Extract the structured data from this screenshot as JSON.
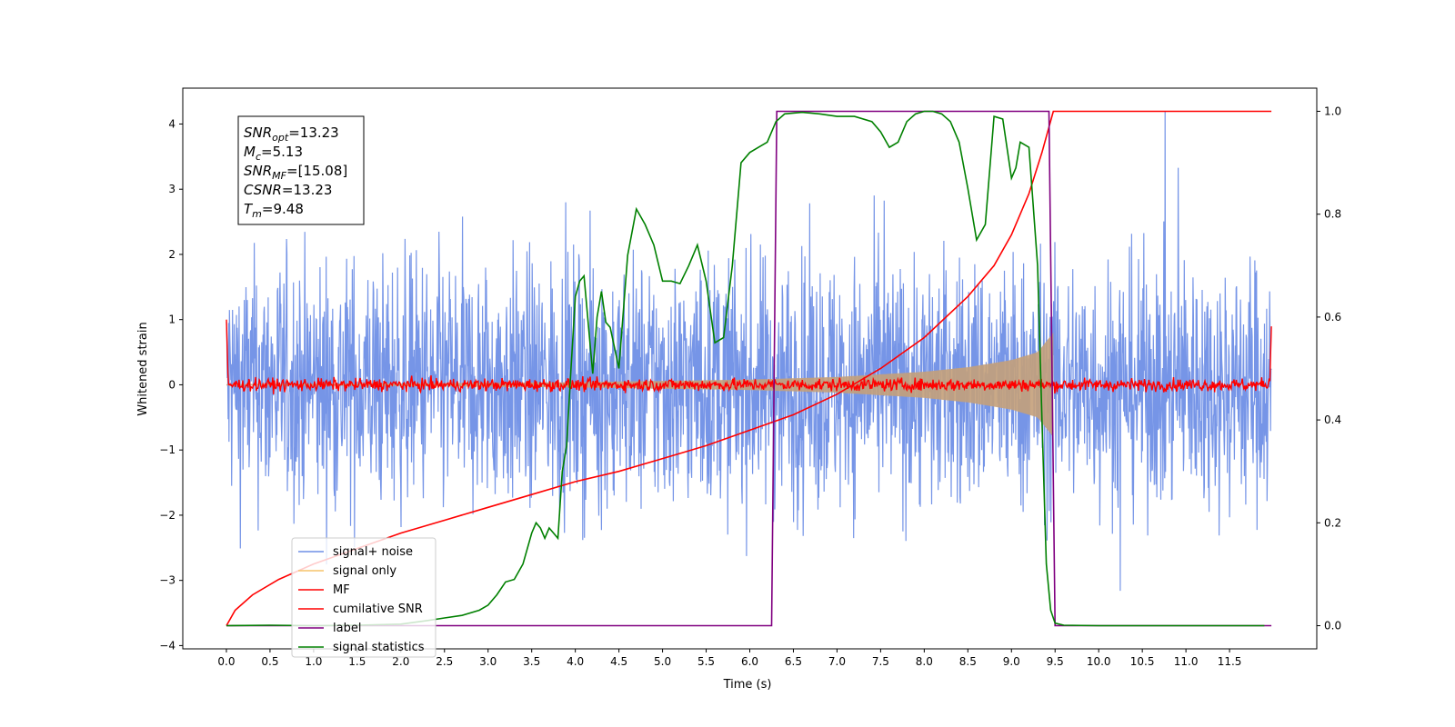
{
  "chart_data": {
    "type": "line",
    "title": "",
    "xlabel": "Time (s)",
    "ylabel": "Whitened strain",
    "xlim": [
      -0.5,
      12.5
    ],
    "ylim": [
      -4.05,
      4.55
    ],
    "y2lim": [
      -0.045,
      1.045
    ],
    "xticks": [
      "0.0",
      "0.5",
      "1.0",
      "1.5",
      "2.0",
      "2.5",
      "3.0",
      "3.5",
      "4.0",
      "4.5",
      "5.0",
      "5.5",
      "6.0",
      "6.5",
      "7.0",
      "7.5",
      "8.0",
      "8.5",
      "9.0",
      "9.5",
      "10.0",
      "10.5",
      "11.0",
      "11.5"
    ],
    "xtick_values": [
      0,
      0.5,
      1,
      1.5,
      2,
      2.5,
      3,
      3.5,
      4,
      4.5,
      5,
      5.5,
      6,
      6.5,
      7,
      7.5,
      8,
      8.5,
      9,
      9.5,
      10,
      10.5,
      11,
      11.5
    ],
    "yticks": [
      "−4",
      "−3",
      "−2",
      "−1",
      "0",
      "1",
      "2",
      "3",
      "4"
    ],
    "ytick_values": [
      -4,
      -3,
      -2,
      -1,
      0,
      1,
      2,
      3,
      4
    ],
    "y2ticks": [
      "0.0",
      "0.2",
      "0.4",
      "0.6",
      "0.8",
      "1.0"
    ],
    "y2tick_values": [
      0,
      0.2,
      0.4,
      0.6,
      0.8,
      1.0
    ],
    "grid": false,
    "legend_position": "lower-left",
    "annotation": {
      "lines": [
        {
          "base": "SNR",
          "sub": "opt",
          "value": "=13.23"
        },
        {
          "base": "M",
          "sub": "c",
          "value": "=5.13"
        },
        {
          "base": "SNR",
          "sub": "MF",
          "value": "=[15.08]"
        },
        {
          "base": "CSNR",
          "sub": "",
          "value": "=13.23"
        },
        {
          "base": "T",
          "sub": "m",
          "value": "=9.48"
        }
      ]
    },
    "series": [
      {
        "name": "signal+ noise",
        "color": "#6f8fe6",
        "axis": "left",
        "x_range": [
          0,
          11.98
        ],
        "amplitude_typical": 1.6,
        "amplitude_max": 4.2,
        "samples": 2400
      },
      {
        "name": "signal only",
        "color": "#f5c46a",
        "axis": "left",
        "x_range": [
          0,
          9.48
        ],
        "envelope": [
          [
            0,
            0.01
          ],
          [
            2,
            0.02
          ],
          [
            4,
            0.04
          ],
          [
            6,
            0.08
          ],
          [
            7,
            0.12
          ],
          [
            8,
            0.2
          ],
          [
            8.5,
            0.27
          ],
          [
            9,
            0.38
          ],
          [
            9.3,
            0.5
          ],
          [
            9.48,
            0.8
          ]
        ]
      },
      {
        "name": "MF",
        "color": "#ff0000",
        "axis": "left",
        "x_range": [
          0,
          11.98
        ],
        "edge_values": [
          1.0,
          0.9
        ],
        "noise_amplitude": 0.08
      },
      {
        "name": "cumilative SNR",
        "color": "#ff0000",
        "axis": "right",
        "points": [
          [
            0,
            0
          ],
          [
            0.1,
            0.03
          ],
          [
            0.3,
            0.06
          ],
          [
            0.6,
            0.09
          ],
          [
            1.0,
            0.12
          ],
          [
            1.5,
            0.15
          ],
          [
            2.0,
            0.18
          ],
          [
            2.5,
            0.205
          ],
          [
            3.0,
            0.23
          ],
          [
            3.5,
            0.255
          ],
          [
            4.0,
            0.28
          ],
          [
            4.5,
            0.3
          ],
          [
            5.0,
            0.325
          ],
          [
            5.5,
            0.35
          ],
          [
            6.0,
            0.38
          ],
          [
            6.5,
            0.41
          ],
          [
            7.0,
            0.45
          ],
          [
            7.5,
            0.5
          ],
          [
            8.0,
            0.56
          ],
          [
            8.5,
            0.64
          ],
          [
            8.8,
            0.7
          ],
          [
            9.0,
            0.76
          ],
          [
            9.2,
            0.84
          ],
          [
            9.35,
            0.92
          ],
          [
            9.48,
            1.0
          ],
          [
            11.98,
            1.0
          ]
        ]
      },
      {
        "name": "label",
        "color": "#800080",
        "axis": "right",
        "points": [
          [
            0,
            0
          ],
          [
            6.25,
            0
          ],
          [
            6.31,
            1
          ],
          [
            9.43,
            1
          ],
          [
            9.5,
            0
          ],
          [
            11.98,
            0
          ]
        ]
      },
      {
        "name": "signal statistics",
        "color": "#008000",
        "axis": "right",
        "points": [
          [
            0,
            0
          ],
          [
            0.5,
            0.001
          ],
          [
            1.0,
            0
          ],
          [
            1.5,
            0.001
          ],
          [
            2.0,
            0.003
          ],
          [
            2.3,
            0.01
          ],
          [
            2.5,
            0.015
          ],
          [
            2.7,
            0.02
          ],
          [
            2.9,
            0.03
          ],
          [
            3.0,
            0.04
          ],
          [
            3.1,
            0.06
          ],
          [
            3.2,
            0.085
          ],
          [
            3.3,
            0.09
          ],
          [
            3.4,
            0.12
          ],
          [
            3.5,
            0.18
          ],
          [
            3.55,
            0.2
          ],
          [
            3.6,
            0.19
          ],
          [
            3.65,
            0.17
          ],
          [
            3.7,
            0.19
          ],
          [
            3.75,
            0.18
          ],
          [
            3.8,
            0.17
          ],
          [
            3.85,
            0.3
          ],
          [
            3.9,
            0.35
          ],
          [
            3.95,
            0.5
          ],
          [
            4.0,
            0.64
          ],
          [
            4.05,
            0.67
          ],
          [
            4.1,
            0.68
          ],
          [
            4.2,
            0.49
          ],
          [
            4.25,
            0.6
          ],
          [
            4.3,
            0.65
          ],
          [
            4.35,
            0.59
          ],
          [
            4.4,
            0.58
          ],
          [
            4.5,
            0.5
          ],
          [
            4.6,
            0.72
          ],
          [
            4.7,
            0.81
          ],
          [
            4.8,
            0.78
          ],
          [
            4.9,
            0.74
          ],
          [
            5.0,
            0.67
          ],
          [
            5.1,
            0.67
          ],
          [
            5.2,
            0.665
          ],
          [
            5.3,
            0.7
          ],
          [
            5.4,
            0.74
          ],
          [
            5.5,
            0.67
          ],
          [
            5.6,
            0.55
          ],
          [
            5.7,
            0.56
          ],
          [
            5.8,
            0.7
          ],
          [
            5.9,
            0.9
          ],
          [
            6.0,
            0.92
          ],
          [
            6.1,
            0.93
          ],
          [
            6.2,
            0.94
          ],
          [
            6.3,
            0.98
          ],
          [
            6.4,
            0.995
          ],
          [
            6.6,
            0.998
          ],
          [
            6.8,
            0.995
          ],
          [
            7.0,
            0.99
          ],
          [
            7.2,
            0.99
          ],
          [
            7.4,
            0.98
          ],
          [
            7.5,
            0.96
          ],
          [
            7.6,
            0.93
          ],
          [
            7.7,
            0.94
          ],
          [
            7.8,
            0.98
          ],
          [
            7.9,
            0.995
          ],
          [
            8.0,
            1.0
          ],
          [
            8.1,
            1.0
          ],
          [
            8.2,
            0.995
          ],
          [
            8.3,
            0.98
          ],
          [
            8.4,
            0.94
          ],
          [
            8.5,
            0.85
          ],
          [
            8.6,
            0.75
          ],
          [
            8.7,
            0.78
          ],
          [
            8.8,
            0.99
          ],
          [
            8.9,
            0.985
          ],
          [
            9.0,
            0.87
          ],
          [
            9.05,
            0.89
          ],
          [
            9.1,
            0.94
          ],
          [
            9.2,
            0.93
          ],
          [
            9.3,
            0.7
          ],
          [
            9.35,
            0.4
          ],
          [
            9.4,
            0.12
          ],
          [
            9.45,
            0.03
          ],
          [
            9.5,
            0.005
          ],
          [
            9.6,
            0.001
          ],
          [
            10,
            0
          ],
          [
            11.9,
            0
          ]
        ]
      }
    ]
  }
}
